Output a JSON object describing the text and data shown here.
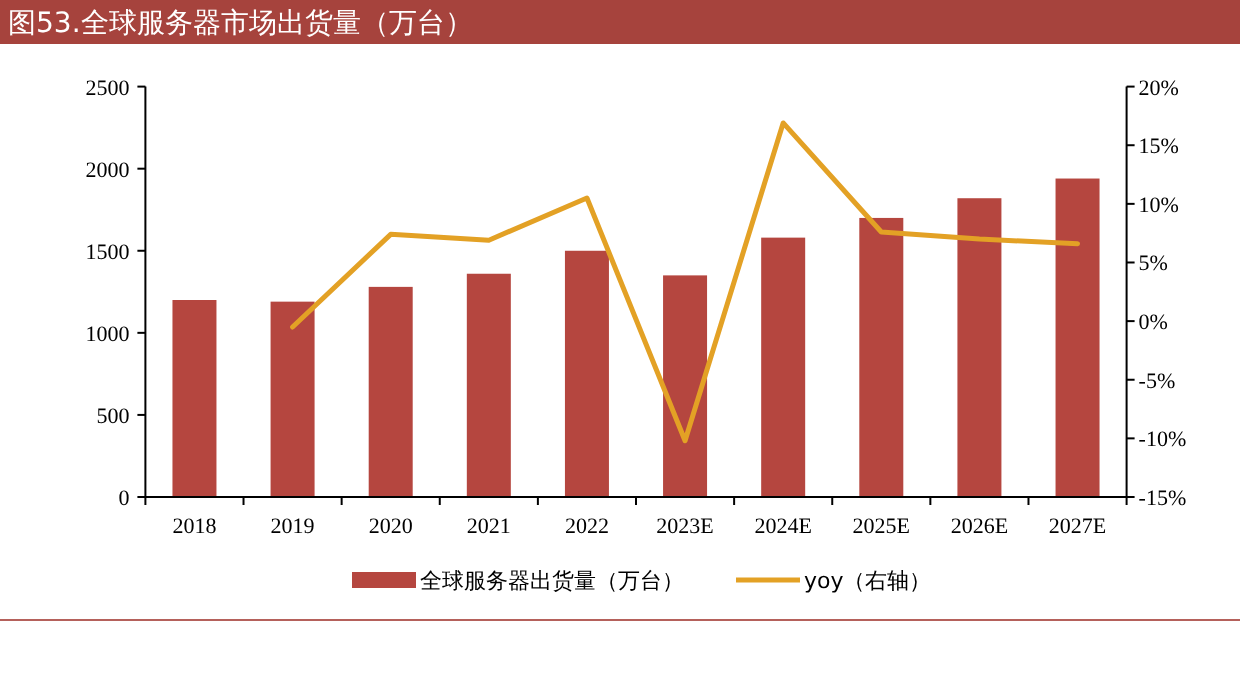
{
  "chart_data": {
    "type": "bar",
    "title": "图53.全球服务器市场出货量（万台）",
    "categories": [
      "2018",
      "2019",
      "2020",
      "2021",
      "2022",
      "2023E",
      "2024E",
      "2025E",
      "2026E",
      "2027E"
    ],
    "series": [
      {
        "name": "全球服务器出货量（万台）",
        "color": "#b5463f",
        "values": [
          1200,
          1190,
          1280,
          1360,
          1500,
          1350,
          1580,
          1700,
          1820,
          1940
        ]
      },
      {
        "name": "yoy（右轴）",
        "type": "line",
        "axis": "y2",
        "color": "#e3a125",
        "values": [
          null,
          -0.5,
          7.4,
          6.9,
          10.5,
          -10.2,
          16.9,
          7.6,
          7.0,
          6.6
        ]
      }
    ],
    "ylim": [
      0,
      2500
    ],
    "yticks": [
      0,
      500,
      1000,
      1500,
      2000,
      2500
    ],
    "y2lim": [
      -15,
      20
    ],
    "y2ticks": [
      {
        "value": -15,
        "label": "-15%"
      },
      {
        "value": -10,
        "label": "-10%"
      },
      {
        "value": -5,
        "label": "-5%"
      },
      {
        "value": 0,
        "label": "0%"
      },
      {
        "value": 5,
        "label": "5%"
      },
      {
        "value": 10,
        "label": "10%"
      },
      {
        "value": 15,
        "label": "15%"
      },
      {
        "value": 20,
        "label": "20%"
      }
    ],
    "grid": false,
    "legend": "bottom"
  }
}
